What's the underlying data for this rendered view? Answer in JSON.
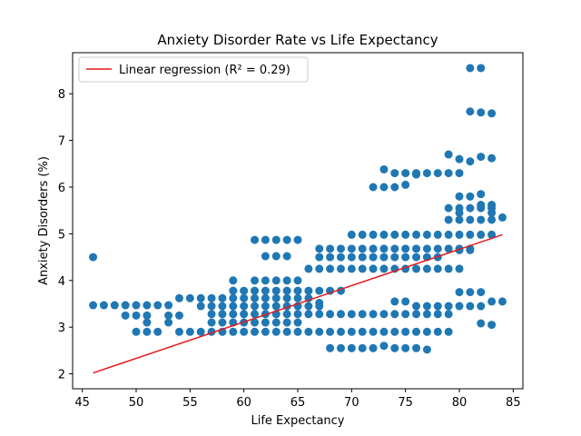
{
  "chart_data": {
    "type": "scatter",
    "title": "Anxiety Disorder Rate vs Life Expectancy",
    "xlabel": "Life Expectancy",
    "ylabel": "Anxiety Disorders (%)",
    "xlim": [
      44.1,
      85.9
    ],
    "ylim": [
      1.68,
      8.88
    ],
    "xticks": [
      45,
      50,
      55,
      60,
      65,
      70,
      75,
      80,
      85
    ],
    "yticks": [
      2,
      3,
      4,
      5,
      6,
      7,
      8
    ],
    "grid": false,
    "legend": {
      "placement": "top-left",
      "entries": [
        "Linear regression (R² = 0.29)"
      ]
    },
    "colors": {
      "points": "#1f77b4",
      "regression": "#e41a1c"
    },
    "regression": {
      "x": [
        46,
        84
      ],
      "y": [
        2.02,
        4.98
      ]
    },
    "points": [
      [
        46,
        4.5
      ],
      [
        46,
        3.47
      ],
      [
        47,
        3.47
      ],
      [
        48,
        3.47
      ],
      [
        49,
        3.47
      ],
      [
        50,
        3.47
      ],
      [
        51,
        3.47
      ],
      [
        52,
        3.47
      ],
      [
        53,
        3.47
      ],
      [
        49,
        3.25
      ],
      [
        50,
        3.25
      ],
      [
        51,
        3.25
      ],
      [
        53,
        3.25
      ],
      [
        54,
        3.25
      ],
      [
        51,
        3.1
      ],
      [
        53,
        3.1
      ],
      [
        50,
        2.9
      ],
      [
        51,
        2.9
      ],
      [
        52,
        2.9
      ],
      [
        54,
        2.9
      ],
      [
        55,
        2.9
      ],
      [
        56,
        2.9
      ],
      [
        57,
        2.9
      ],
      [
        58,
        2.9
      ],
      [
        59,
        2.9
      ],
      [
        60,
        2.9
      ],
      [
        61,
        2.9
      ],
      [
        62,
        2.9
      ],
      [
        63,
        2.9
      ],
      [
        64,
        2.9
      ],
      [
        65,
        2.9
      ],
      [
        66,
        2.9
      ],
      [
        67,
        2.9
      ],
      [
        68,
        2.9
      ],
      [
        69,
        2.9
      ],
      [
        70,
        2.9
      ],
      [
        71,
        2.9
      ],
      [
        72,
        2.9
      ],
      [
        73,
        2.9
      ],
      [
        74,
        2.9
      ],
      [
        75,
        2.9
      ],
      [
        76,
        2.9
      ],
      [
        77,
        2.9
      ],
      [
        78,
        2.9
      ],
      [
        79,
        2.9
      ],
      [
        54,
        3.62
      ],
      [
        55,
        3.62
      ],
      [
        56,
        3.62
      ],
      [
        57,
        3.62
      ],
      [
        58,
        3.62
      ],
      [
        59,
        3.62
      ],
      [
        60,
        3.62
      ],
      [
        61,
        3.62
      ],
      [
        62,
        3.62
      ],
      [
        63,
        3.62
      ],
      [
        64,
        3.62
      ],
      [
        65,
        3.62
      ],
      [
        66,
        3.62
      ],
      [
        56,
        3.45
      ],
      [
        57,
        3.45
      ],
      [
        58,
        3.45
      ],
      [
        59,
        3.45
      ],
      [
        60,
        3.45
      ],
      [
        61,
        3.45
      ],
      [
        62,
        3.45
      ],
      [
        63,
        3.45
      ],
      [
        64,
        3.45
      ],
      [
        65,
        3.45
      ],
      [
        66,
        3.45
      ],
      [
        67,
        3.45
      ],
      [
        57,
        3.28
      ],
      [
        58,
        3.28
      ],
      [
        59,
        3.28
      ],
      [
        60,
        3.28
      ],
      [
        61,
        3.28
      ],
      [
        62,
        3.28
      ],
      [
        63,
        3.28
      ],
      [
        64,
        3.28
      ],
      [
        65,
        3.28
      ],
      [
        66,
        3.28
      ],
      [
        67,
        3.28
      ],
      [
        68,
        3.28
      ],
      [
        69,
        3.28
      ],
      [
        70,
        3.28
      ],
      [
        71,
        3.28
      ],
      [
        72,
        3.28
      ],
      [
        73,
        3.28
      ],
      [
        74,
        3.28
      ],
      [
        75,
        3.28
      ],
      [
        76,
        3.28
      ],
      [
        77,
        3.28
      ],
      [
        78,
        3.28
      ],
      [
        79,
        3.28
      ],
      [
        57,
        3.1
      ],
      [
        58,
        3.1
      ],
      [
        59,
        3.1
      ],
      [
        60,
        3.1
      ],
      [
        61,
        3.1
      ],
      [
        62,
        3.1
      ],
      [
        63,
        3.1
      ],
      [
        64,
        3.1
      ],
      [
        65,
        3.1
      ],
      [
        59,
        3.78
      ],
      [
        60,
        3.78
      ],
      [
        61,
        3.78
      ],
      [
        62,
        3.78
      ],
      [
        63,
        3.78
      ],
      [
        64,
        3.78
      ],
      [
        65,
        3.78
      ],
      [
        66,
        3.78
      ],
      [
        67,
        3.78
      ],
      [
        68,
        3.78
      ],
      [
        69,
        3.78
      ],
      [
        59,
        4.0
      ],
      [
        61,
        4.0
      ],
      [
        62,
        4.0
      ],
      [
        63,
        4.0
      ],
      [
        64,
        4.0
      ],
      [
        65,
        4.0
      ],
      [
        61,
        4.87
      ],
      [
        62,
        4.87
      ],
      [
        63,
        4.87
      ],
      [
        64,
        4.87
      ],
      [
        65,
        4.87
      ],
      [
        62,
        4.52
      ],
      [
        63,
        4.52
      ],
      [
        64,
        4.52
      ],
      [
        66,
        4.25
      ],
      [
        67,
        4.25
      ],
      [
        68,
        4.25
      ],
      [
        69,
        4.25
      ],
      [
        70,
        4.25
      ],
      [
        71,
        4.25
      ],
      [
        72,
        4.25
      ],
      [
        73,
        4.25
      ],
      [
        74,
        4.25
      ],
      [
        75,
        4.25
      ],
      [
        76,
        4.25
      ],
      [
        77,
        4.25
      ],
      [
        78,
        4.25
      ],
      [
        79,
        4.25
      ],
      [
        80,
        4.25
      ],
      [
        67,
        4.5
      ],
      [
        68,
        4.5
      ],
      [
        69,
        4.5
      ],
      [
        70,
        4.5
      ],
      [
        71,
        4.5
      ],
      [
        72,
        4.5
      ],
      [
        73,
        4.5
      ],
      [
        74,
        4.5
      ],
      [
        75,
        4.5
      ],
      [
        76,
        4.5
      ],
      [
        77,
        4.5
      ],
      [
        78,
        4.5
      ],
      [
        67,
        4.68
      ],
      [
        68,
        4.68
      ],
      [
        69,
        4.68
      ],
      [
        70,
        4.68
      ],
      [
        71,
        4.68
      ],
      [
        72,
        4.68
      ],
      [
        73,
        4.68
      ],
      [
        74,
        4.68
      ],
      [
        75,
        4.68
      ],
      [
        76,
        4.68
      ],
      [
        77,
        4.68
      ],
      [
        78,
        4.68
      ],
      [
        79,
        4.68
      ],
      [
        80,
        4.68
      ],
      [
        81,
        4.68
      ],
      [
        70,
        4.98
      ],
      [
        71,
        4.98
      ],
      [
        72,
        4.98
      ],
      [
        73,
        4.98
      ],
      [
        74,
        4.98
      ],
      [
        75,
        4.98
      ],
      [
        76,
        4.98
      ],
      [
        77,
        4.98
      ],
      [
        78,
        4.98
      ],
      [
        79,
        4.98
      ],
      [
        80,
        4.98
      ],
      [
        81,
        4.98
      ],
      [
        82,
        4.98
      ],
      [
        83,
        4.98
      ],
      [
        67,
        3.52
      ],
      [
        68,
        2.55
      ],
      [
        69,
        2.55
      ],
      [
        70,
        2.55
      ],
      [
        71,
        2.55
      ],
      [
        72,
        2.55
      ],
      [
        73,
        2.6
      ],
      [
        74,
        2.55
      ],
      [
        75,
        2.55
      ],
      [
        76,
        2.55
      ],
      [
        77,
        2.52
      ],
      [
        73,
        6.38
      ],
      [
        74,
        6.3
      ],
      [
        75,
        6.3
      ],
      [
        76,
        6.3
      ],
      [
        77,
        6.3
      ],
      [
        78,
        6.3
      ],
      [
        79,
        6.3
      ],
      [
        80,
        6.3
      ],
      [
        72,
        6.0
      ],
      [
        73,
        6.0
      ],
      [
        74,
        6.0
      ],
      [
        75,
        6.05
      ],
      [
        76,
        6.27
      ],
      [
        74,
        3.55
      ],
      [
        75,
        3.55
      ],
      [
        76,
        3.45
      ],
      [
        77,
        3.45
      ],
      [
        78,
        3.45
      ],
      [
        79,
        3.45
      ],
      [
        80,
        3.45
      ],
      [
        81,
        3.45
      ],
      [
        82,
        3.45
      ],
      [
        83,
        3.55
      ],
      [
        84,
        3.55
      ],
      [
        79,
        6.7
      ],
      [
        80,
        6.6
      ],
      [
        81,
        6.55
      ],
      [
        82,
        6.65
      ],
      [
        83,
        6.62
      ],
      [
        79,
        5.3
      ],
      [
        80,
        5.3
      ],
      [
        81,
        5.3
      ],
      [
        82,
        5.3
      ],
      [
        83,
        5.3
      ],
      [
        84,
        5.35
      ],
      [
        79,
        5.55
      ],
      [
        80,
        5.55
      ],
      [
        81,
        5.55
      ],
      [
        82,
        5.55
      ],
      [
        83,
        5.55
      ],
      [
        80,
        5.8
      ],
      [
        81,
        5.8
      ],
      [
        82,
        5.85
      ],
      [
        82,
        5.62
      ],
      [
        83,
        5.62
      ],
      [
        80,
        5.45
      ],
      [
        83,
        5.45
      ],
      [
        80,
        3.75
      ],
      [
        81,
        3.75
      ],
      [
        82,
        3.75
      ],
      [
        81,
        7.62
      ],
      [
        82,
        7.6
      ],
      [
        83,
        7.58
      ],
      [
        81,
        8.55
      ],
      [
        82,
        8.55
      ],
      [
        82,
        3.08
      ],
      [
        83,
        3.05
      ],
      [
        81,
        4.65
      ],
      [
        80,
        4.65
      ]
    ]
  }
}
